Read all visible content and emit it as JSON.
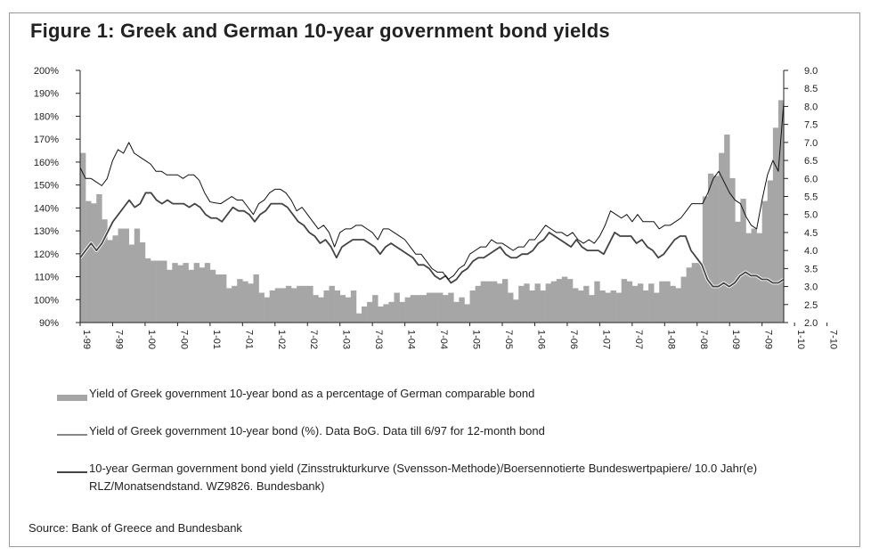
{
  "chart_data": {
    "type": "bar+line",
    "title": "Figure 1: Greek and German 10-year government bond yields",
    "source": "Source: Bank of Greece and Bundesbank",
    "y_left": {
      "range": [
        90,
        200
      ],
      "ticks": [
        "200%",
        "190%",
        "180%",
        "170%",
        "160%",
        "150%",
        "140%",
        "130%",
        "120%",
        "110%",
        "100%",
        "90%"
      ]
    },
    "y_right": {
      "range": [
        2.0,
        9.0
      ],
      "ticks": [
        "9.0",
        "8.5",
        "8.0",
        "7.5",
        "7.0",
        "6.5",
        "6.0",
        "5.5",
        "5.0",
        "4.5",
        "4.0",
        "3.5",
        "3.0",
        "2.5",
        "2.0"
      ]
    },
    "x_ticks": [
      "1-99",
      "7-99",
      "1-00",
      "7-00",
      "1-01",
      "7-01",
      "1-02",
      "7-02",
      "1-03",
      "7-03",
      "1-04",
      "7-04",
      "1-05",
      "7-05",
      "1-06",
      "7-06",
      "1-07",
      "7-07",
      "1-08",
      "7-08",
      "1-09",
      "7-09",
      "1-10",
      "7-10"
    ],
    "series": [
      {
        "name": "Yield of Greek government 10-year bond as a percentage of German comparable bond",
        "axis": "left",
        "kind": "bar",
        "values": [
          164,
          143,
          142,
          146,
          135,
          126,
          128,
          131,
          131,
          124,
          131,
          125,
          118,
          117,
          117,
          117,
          113,
          116,
          115,
          116,
          113,
          116,
          114,
          116,
          113,
          111,
          111,
          105,
          106,
          109,
          108,
          107,
          111,
          103,
          101,
          104,
          105,
          105,
          106,
          105,
          106,
          106,
          106,
          102,
          101,
          104,
          106,
          104,
          102,
          101,
          104,
          94,
          97,
          99,
          102,
          97,
          98,
          99,
          103,
          99,
          101,
          102,
          102,
          102,
          103,
          103,
          103,
          102,
          103,
          99,
          101,
          98,
          104,
          106,
          108,
          108,
          108,
          107,
          109,
          103,
          100,
          106,
          107,
          104,
          107,
          104,
          107,
          108,
          109,
          110,
          109,
          105,
          104,
          106,
          102,
          108,
          104,
          103,
          104,
          103,
          109,
          108,
          106,
          107,
          104,
          107,
          103,
          108,
          108,
          106,
          105,
          110,
          114,
          116,
          116,
          145,
          155,
          154,
          164,
          172,
          153,
          134,
          144,
          129,
          131,
          129,
          143,
          152,
          175,
          187
        ]
      },
      {
        "name": "Yield of Greek government 10-year bond (%). Data BoG. Data till 6/97 for 12-month bond",
        "axis": "right",
        "kind": "thin-line",
        "values": [
          6.3,
          6.0,
          6.0,
          5.9,
          5.8,
          6.0,
          6.5,
          6.8,
          6.7,
          7.0,
          6.7,
          6.6,
          6.5,
          6.4,
          6.2,
          6.2,
          6.1,
          6.1,
          6.1,
          6.0,
          6.1,
          6.1,
          5.95,
          5.6,
          5.35,
          5.32,
          5.3,
          5.4,
          5.5,
          5.4,
          5.4,
          5.2,
          5.0,
          5.3,
          5.4,
          5.6,
          5.7,
          5.7,
          5.6,
          5.4,
          5.1,
          5.2,
          5.0,
          4.8,
          4.6,
          4.7,
          4.5,
          4.1,
          4.5,
          4.6,
          4.6,
          4.7,
          4.7,
          4.6,
          4.5,
          4.3,
          4.6,
          4.6,
          4.5,
          4.4,
          4.3,
          4.1,
          3.9,
          3.9,
          3.7,
          3.5,
          3.4,
          3.4,
          3.2,
          3.3,
          3.5,
          3.6,
          3.9,
          4.0,
          4.1,
          4.1,
          4.3,
          4.2,
          4.2,
          4.1,
          4.0,
          4.1,
          4.1,
          4.3,
          4.3,
          4.5,
          4.7,
          4.6,
          4.5,
          4.5,
          4.4,
          4.5,
          4.3,
          4.2,
          4.3,
          4.2,
          4.4,
          4.7,
          5.1,
          5.0,
          4.9,
          5.0,
          4.8,
          5.0,
          4.8,
          4.8,
          4.8,
          4.6,
          4.7,
          4.7,
          4.8,
          4.9,
          5.1,
          5.3,
          5.3,
          5.3,
          5.6,
          6.0,
          6.2,
          5.9,
          5.6,
          5.4,
          5.3,
          4.95,
          4.7,
          4.6,
          5.4,
          6.1,
          6.5,
          6.2,
          8.1
        ]
      },
      {
        "name": "10-year German government bond yield (Zinsstrukturkurve (Svensson-Methode)/Boersennotierte  Bundeswertpapiere/ 10.0 Jahr(e) RLZ/Monatsendstand. WZ9826. Bundesbank)",
        "axis": "right",
        "kind": "thick-line",
        "values": [
          3.8,
          4.0,
          4.2,
          4.0,
          4.2,
          4.5,
          4.8,
          5.0,
          5.2,
          5.4,
          5.2,
          5.3,
          5.6,
          5.6,
          5.4,
          5.3,
          5.4,
          5.3,
          5.3,
          5.3,
          5.2,
          5.3,
          5.2,
          5.0,
          4.9,
          4.9,
          4.8,
          5.0,
          5.2,
          5.1,
          5.1,
          5.0,
          4.8,
          5.0,
          5.1,
          5.3,
          5.3,
          5.3,
          5.2,
          5.0,
          4.8,
          4.7,
          4.5,
          4.4,
          4.2,
          4.3,
          4.1,
          3.8,
          4.1,
          4.2,
          4.3,
          4.3,
          4.3,
          4.2,
          4.1,
          3.9,
          4.1,
          4.2,
          4.1,
          4.0,
          3.9,
          3.8,
          3.6,
          3.6,
          3.5,
          3.3,
          3.2,
          3.3,
          3.1,
          3.2,
          3.4,
          3.5,
          3.7,
          3.8,
          3.8,
          3.9,
          4.0,
          4.1,
          3.9,
          3.8,
          3.8,
          3.9,
          3.9,
          4.0,
          4.2,
          4.3,
          4.5,
          4.4,
          4.3,
          4.2,
          4.1,
          4.3,
          4.1,
          4.0,
          4.0,
          4.0,
          3.9,
          4.2,
          4.5,
          4.4,
          4.4,
          4.4,
          4.2,
          4.3,
          4.1,
          4.0,
          3.8,
          3.9,
          4.1,
          4.3,
          4.4,
          4.4,
          4.0,
          3.8,
          3.6,
          3.2,
          3.0,
          3.0,
          3.1,
          3.0,
          3.1,
          3.3,
          3.4,
          3.3,
          3.3,
          3.2,
          3.2,
          3.1,
          3.1,
          3.2
        ]
      }
    ],
    "legend_placement": "bottom",
    "grid": false
  }
}
